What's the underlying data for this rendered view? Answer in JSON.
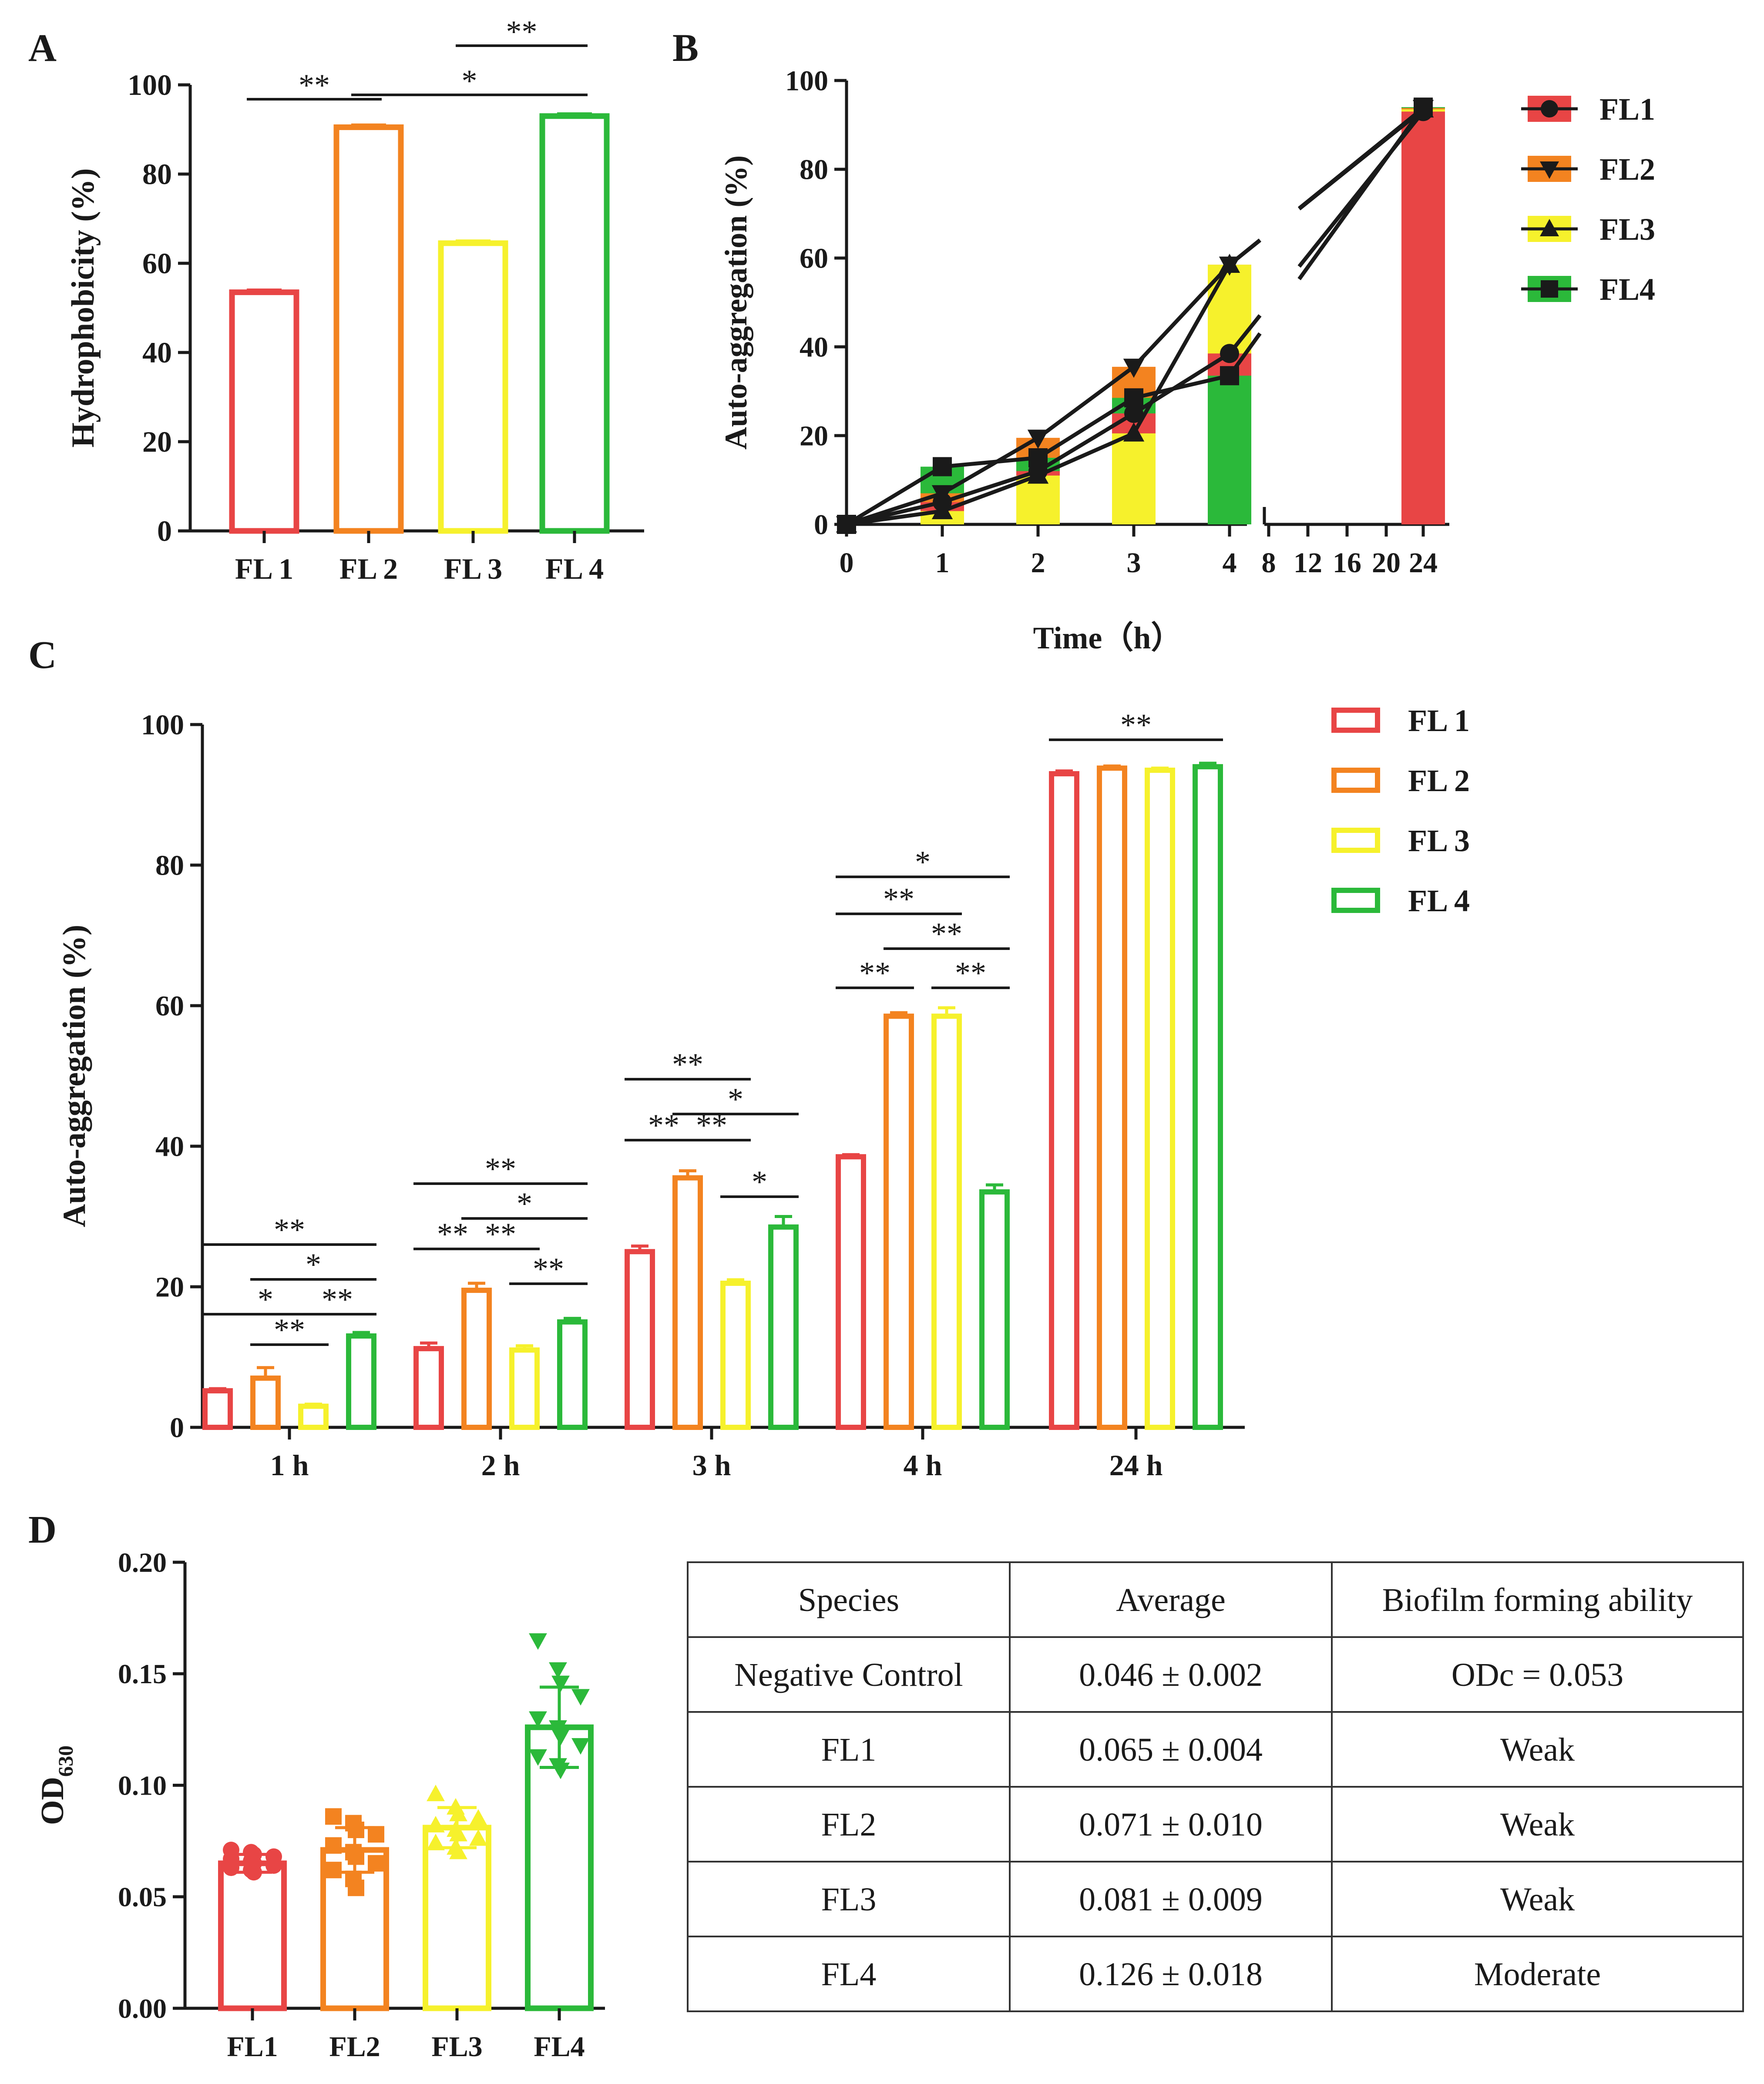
{
  "colors": {
    "FL1": "#e84545",
    "FL2": "#f38320",
    "FL3": "#f6f12c",
    "FL4": "#2bb93a",
    "ink": "#1a1a1a"
  },
  "chart_data": [
    {
      "panel": "A",
      "type": "bar",
      "title": "",
      "xlabel": "",
      "ylabel": "Hydrophobicity (%)",
      "ylim": [
        0,
        100
      ],
      "yticks": [
        0,
        20,
        40,
        60,
        80,
        100
      ],
      "categories": [
        "FL 1",
        "FL 2",
        "FL 3",
        "FL 4"
      ],
      "values": [
        53.5,
        90.5,
        64.5,
        93.0
      ],
      "errors": [
        0.5,
        0.5,
        0.5,
        0.5
      ],
      "bar_style": "outline",
      "significance": [
        {
          "from": 0,
          "to": 1,
          "label": "**"
        },
        {
          "from": 1,
          "to": 3,
          "label": "*"
        },
        {
          "from": 2,
          "to": 3,
          "label": "**"
        }
      ]
    },
    {
      "panel": "B",
      "type": "bar+line",
      "title": "",
      "xlabel": "Time（h）",
      "ylabel": "Auto-aggregation (%)",
      "ylim": [
        0,
        100
      ],
      "yticks": [
        0,
        20,
        40,
        60,
        80,
        100
      ],
      "xticks_left": [
        "0",
        "1",
        "2",
        "3",
        "4"
      ],
      "xticks_right": [
        "8",
        "12",
        "16",
        "20",
        "24"
      ],
      "x": [
        0,
        1,
        2,
        3,
        4,
        24
      ],
      "legend": [
        "FL1",
        "FL2",
        "FL3",
        "FL4"
      ],
      "series": [
        {
          "name": "FL1",
          "marker": "circle",
          "values": [
            0,
            5,
            12,
            25,
            38.5,
            93
          ]
        },
        {
          "name": "FL2",
          "marker": "triangle-down",
          "values": [
            0,
            7,
            19.5,
            35.5,
            58.5,
            93.8
          ]
        },
        {
          "name": "FL3",
          "marker": "triangle-up",
          "values": [
            0,
            3,
            11,
            20.5,
            58.5,
            93.5
          ]
        },
        {
          "name": "FL4",
          "marker": "square",
          "values": [
            0,
            13,
            15,
            28.5,
            33.5,
            94
          ]
        }
      ]
    },
    {
      "panel": "C",
      "type": "bar",
      "title": "",
      "xlabel": "",
      "ylabel": "Auto-aggregation (%)",
      "ylim": [
        0,
        100
      ],
      "yticks": [
        0,
        20,
        40,
        60,
        80,
        100
      ],
      "categories": [
        "1 h",
        "2 h",
        "3 h",
        "4 h",
        "24 h"
      ],
      "legend": [
        "FL 1",
        "FL 2",
        "FL 3",
        "FL 4"
      ],
      "bar_style": "outline",
      "series": [
        {
          "name": "FL 1",
          "values": [
            5.2,
            11.2,
            25.0,
            38.5,
            93.0
          ],
          "errors": [
            0.3,
            0.8,
            0.8,
            0.3,
            0.4
          ]
        },
        {
          "name": "FL 2",
          "values": [
            7.0,
            19.5,
            35.5,
            58.5,
            93.8
          ],
          "errors": [
            1.5,
            1.0,
            1.0,
            0.5,
            0.3
          ]
        },
        {
          "name": "FL 3",
          "values": [
            3.0,
            11.0,
            20.5,
            58.5,
            93.5
          ],
          "errors": [
            0.3,
            0.6,
            0.5,
            1.2,
            0.3
          ]
        },
        {
          "name": "FL 4",
          "values": [
            13.0,
            15.0,
            28.5,
            33.5,
            94.0
          ],
          "errors": [
            0.5,
            0.5,
            1.5,
            1.0,
            0.5
          ]
        }
      ],
      "significance": [
        {
          "group": 0,
          "from": 0,
          "to": 3,
          "level": 5,
          "label": "**"
        },
        {
          "group": 0,
          "from": 1,
          "to": 3,
          "level": 4,
          "label": "*"
        },
        {
          "group": 0,
          "from": 0,
          "to": 2,
          "level": 3,
          "label": "*"
        },
        {
          "group": 0,
          "from": 2,
          "to": 3,
          "level": 3,
          "label": "**"
        },
        {
          "group": 0,
          "from": 1,
          "to": 2,
          "level": 2,
          "label": "**"
        },
        {
          "group": 1,
          "from": 0,
          "to": 3,
          "level": 5,
          "label": "**"
        },
        {
          "group": 1,
          "from": 1,
          "to": 3,
          "level": 4,
          "label": "*"
        },
        {
          "group": 1,
          "from": 0,
          "to": 1,
          "level": 3,
          "label": "**"
        },
        {
          "group": 1,
          "from": 1,
          "to": 2,
          "level": 3,
          "label": "**"
        },
        {
          "group": 1,
          "from": 2,
          "to": 3,
          "level": 2,
          "label": "**"
        },
        {
          "group": 2,
          "from": 0,
          "to": 2,
          "level": 5,
          "label": "**"
        },
        {
          "group": 2,
          "from": 1,
          "to": 3,
          "level": 4,
          "label": "*"
        },
        {
          "group": 2,
          "from": 0,
          "to": 1,
          "level": 3,
          "label": "**"
        },
        {
          "group": 2,
          "from": 1,
          "to": 2,
          "level": 3,
          "label": "**"
        },
        {
          "group": 2,
          "from": 2,
          "to": 3,
          "level": 2,
          "label": "*"
        },
        {
          "group": 3,
          "from": 0,
          "to": 3,
          "level": 5,
          "label": "*"
        },
        {
          "group": 3,
          "from": 0,
          "to": 2,
          "level": 4,
          "label": "**"
        },
        {
          "group": 3,
          "from": 1,
          "to": 3,
          "level": 3,
          "label": "**"
        },
        {
          "group": 3,
          "from": 0,
          "to": 1,
          "level": 2,
          "label": "**"
        },
        {
          "group": 3,
          "from": 2,
          "to": 3,
          "level": 2,
          "label": "**"
        },
        {
          "group": 4,
          "from": 0,
          "to": 3,
          "level": 1,
          "label": "**"
        }
      ]
    },
    {
      "panel": "D",
      "type": "bar",
      "title": "",
      "xlabel": "",
      "ylabel": "OD",
      "ylabel_sub": "630",
      "ylim": [
        0,
        0.2
      ],
      "yticks": [
        "0.00",
        "0.05",
        "0.10",
        "0.15",
        "0.20"
      ],
      "categories": [
        "FL1",
        "FL2",
        "FL3",
        "FL4"
      ],
      "values": [
        0.065,
        0.071,
        0.081,
        0.126
      ],
      "errors": [
        0.004,
        0.01,
        0.009,
        0.018
      ],
      "bar_style": "outline+points",
      "points": [
        {
          "marker": "circle",
          "values": [
            0.071,
            0.07,
            0.069,
            0.068,
            0.067,
            0.066,
            0.065,
            0.064,
            0.063,
            0.062,
            0.061
          ]
        },
        {
          "marker": "square",
          "values": [
            0.086,
            0.083,
            0.08,
            0.078,
            0.073,
            0.07,
            0.068,
            0.065,
            0.062,
            0.058,
            0.054
          ]
        },
        {
          "marker": "triangle-up",
          "values": [
            0.096,
            0.09,
            0.087,
            0.085,
            0.082,
            0.08,
            0.078,
            0.076,
            0.074,
            0.072,
            0.07
          ]
        },
        {
          "marker": "triangle-down",
          "values": [
            0.165,
            0.152,
            0.146,
            0.14,
            0.13,
            0.126,
            0.122,
            0.118,
            0.113,
            0.109,
            0.107
          ]
        }
      ]
    },
    {
      "panel": "D-table",
      "type": "table",
      "columns": [
        "Species",
        "Average",
        "Biofilm forming ability"
      ],
      "rows": [
        [
          "Negative Control",
          "0.046 ± 0.002",
          "ODc = 0.053"
        ],
        [
          "FL1",
          "0.065 ± 0.004",
          "Weak"
        ],
        [
          "FL2",
          "0.071 ± 0.010",
          "Weak"
        ],
        [
          "FL3",
          "0.081 ± 0.009",
          "Weak"
        ],
        [
          "FL4",
          "0.126 ± 0.018",
          "Moderate"
        ]
      ]
    }
  ],
  "panel_labels": {
    "a": "A",
    "b": "B",
    "c": "C",
    "d": "D"
  }
}
